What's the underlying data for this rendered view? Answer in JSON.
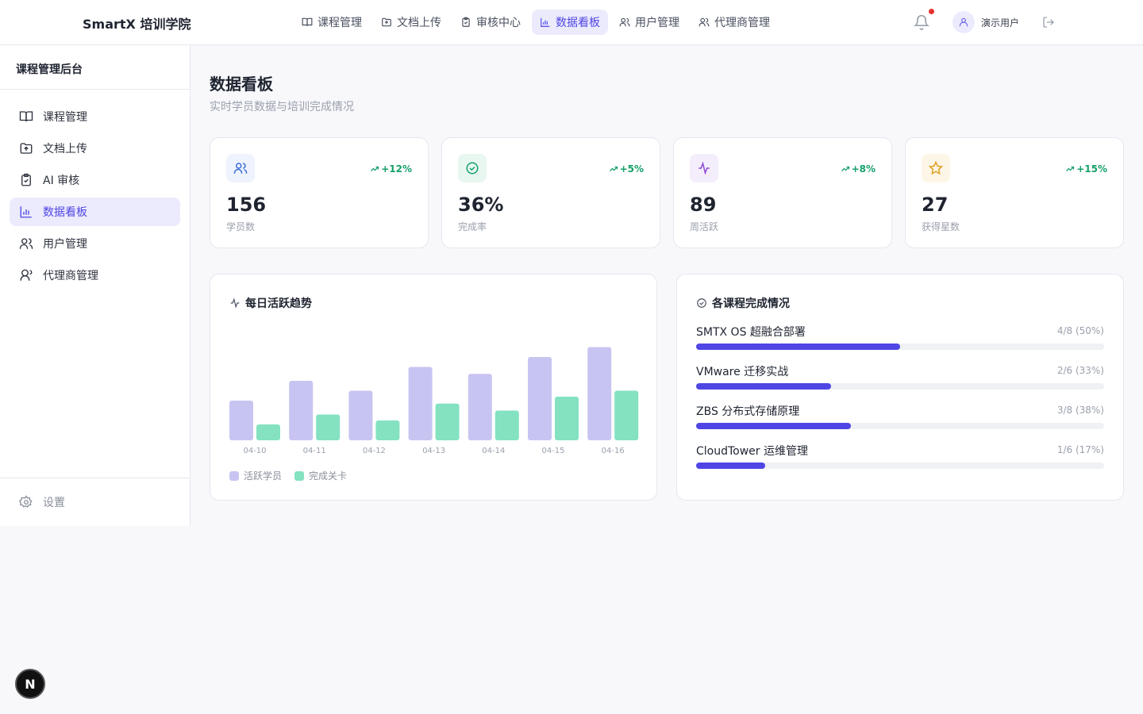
{
  "header": {
    "brand": "SmartX 培训学院",
    "nav": [
      {
        "label": "课程管理",
        "icon": "book-icon",
        "active": false
      },
      {
        "label": "文档上传",
        "icon": "upload-folder-icon",
        "active": false
      },
      {
        "label": "审核中心",
        "icon": "clipboard-check-icon",
        "active": false
      },
      {
        "label": "数据看板",
        "icon": "bar-chart-icon",
        "active": true
      },
      {
        "label": "用户管理",
        "icon": "users-icon",
        "active": false
      },
      {
        "label": "代理商管理",
        "icon": "user-group-icon",
        "active": false
      }
    ],
    "user_name": "演示用户",
    "has_notification": true
  },
  "sidebar": {
    "title": "课程管理后台",
    "items": [
      {
        "label": "课程管理",
        "icon": "book-icon",
        "active": false
      },
      {
        "label": "文档上传",
        "icon": "upload-folder-icon",
        "active": false
      },
      {
        "label": "AI 审核",
        "icon": "clipboard-check-icon",
        "active": false
      },
      {
        "label": "数据看板",
        "icon": "bar-chart-icon",
        "active": true
      },
      {
        "label": "用户管理",
        "icon": "users-icon",
        "active": false
      },
      {
        "label": "代理商管理",
        "icon": "user-group-icon",
        "active": false
      }
    ],
    "settings_label": "设置"
  },
  "main": {
    "title": "数据看板",
    "subtitle": "实时学员数据与培训完成情况",
    "stats": [
      {
        "value": "156",
        "label": "学员数",
        "trend": "+12%",
        "icon": "users-icon",
        "color": "#3b6fd6",
        "bg": "#eef3fd"
      },
      {
        "value": "36%",
        "label": "完成率",
        "trend": "+5%",
        "icon": "check-circle-icon",
        "color": "#15a06a",
        "bg": "#e8f7f0"
      },
      {
        "value": "89",
        "label": "周活跃",
        "trend": "+8%",
        "icon": "activity-icon",
        "color": "#8b46d6",
        "bg": "#f4edfc"
      },
      {
        "value": "27",
        "label": "获得星数",
        "trend": "+15%",
        "icon": "star-icon",
        "color": "#e0a020",
        "bg": "#fdf6e6"
      }
    ],
    "activity_panel_title": "每日活跃趋势",
    "course_panel_title": "各课程完成情况",
    "courses": [
      {
        "name": "SMTX OS 超融合部署",
        "stat": "4/8 (50%)",
        "progress": 0.5
      },
      {
        "name": "VMware 迁移实战",
        "stat": "2/6 (33%)",
        "progress": 0.33
      },
      {
        "name": "ZBS 分布式存储原理",
        "stat": "3/8 (38%)",
        "progress": 0.38
      },
      {
        "name": "CloudTower 运维管理",
        "stat": "1/6 (17%)",
        "progress": 0.17
      }
    ]
  },
  "chart_data": {
    "type": "bar",
    "title": "每日活跃趋势",
    "categories": [
      "04-10",
      "04-11",
      "04-12",
      "04-13",
      "04-14",
      "04-15",
      "04-16"
    ],
    "series": [
      {
        "name": "活跃学员",
        "values": [
          40,
          60,
          50,
          74,
          67,
          84,
          94
        ],
        "color": "#c8c4f2"
      },
      {
        "name": "完成关卡",
        "values": [
          16,
          26,
          20,
          37,
          30,
          44,
          50
        ],
        "color": "#84e2c1"
      }
    ],
    "ylim": [
      0,
      100
    ],
    "grid": false,
    "legend": "bottom-left"
  },
  "badge_letter": "N"
}
